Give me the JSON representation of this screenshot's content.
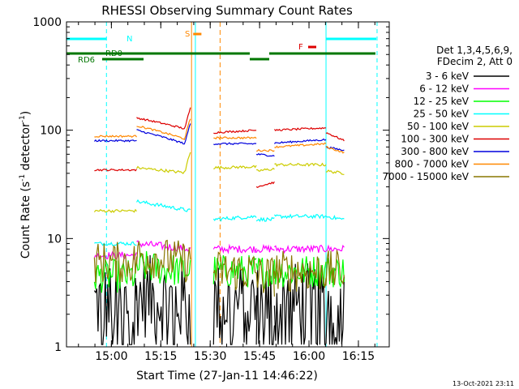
{
  "chart_data": {
    "type": "line",
    "title": "RHESSI Observing Summary Count Rates",
    "xlabel": "Start Time (27-Jan-11 14:46:22)",
    "ylabel_main": "Count Rate (s",
    "ylabel_sup1": "-1",
    "ylabel_mid": " detector",
    "ylabel_sup2": "-1",
    "ylabel_end": ")",
    "y_scale": "log",
    "ylim": [
      1,
      1000
    ],
    "xlim": [
      "14:46:22",
      "16:24:22"
    ],
    "y_ticks": [
      {
        "value": 1,
        "label": "1"
      },
      {
        "value": 10,
        "label": "10"
      },
      {
        "value": 100,
        "label": "100"
      },
      {
        "value": 1000,
        "label": "1000"
      }
    ],
    "x_ticks": [
      "15:00",
      "15:15",
      "15:30",
      "15:45",
      "16:00",
      "16:15"
    ],
    "legend_header": [
      "Det 1,3,4,5,6,9,",
      "FDecim 2, Att 0"
    ],
    "legend_position": "right",
    "series": [
      {
        "name": "3 - 6 keV",
        "color": "#000000"
      },
      {
        "name": "6 - 12 keV",
        "color": "#ff00ff"
      },
      {
        "name": "12 - 25 keV",
        "color": "#00ff00"
      },
      {
        "name": "25 - 50 keV",
        "color": "#00ffff"
      },
      {
        "name": "50 - 100 keV",
        "color": "#cccc00"
      },
      {
        "name": "100 - 300 keV",
        "color": "#dd0000"
      },
      {
        "name": "300 - 800 keV",
        "color": "#0000dd"
      },
      {
        "name": "800 - 7000 keV",
        "color": "#ff8800"
      },
      {
        "name": "7000 - 15000 keV",
        "color": "#887700"
      }
    ],
    "annotations": {
      "flag_n": "N",
      "flag_s": "S",
      "flag_f": "F",
      "flag_rd0": "RD0",
      "flag_rd6": "RD6"
    },
    "footer_date": "13-Oct-2021 23:11"
  }
}
